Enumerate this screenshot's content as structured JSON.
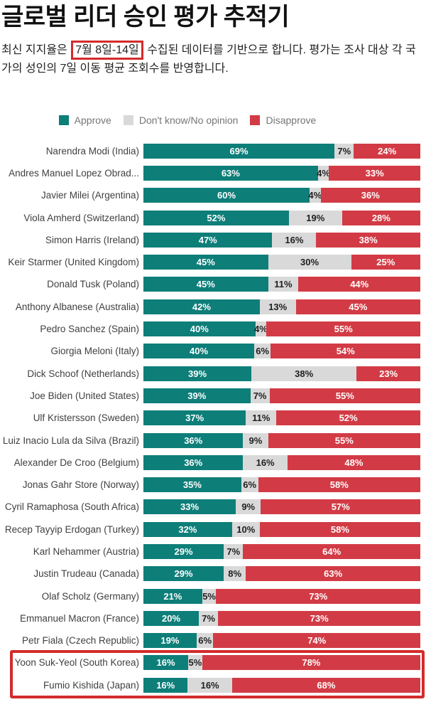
{
  "page": {
    "title": "글로벌 리더 승인 평가 추적기",
    "subtitle_part1": "최신 지지율은 ",
    "subtitle_highlight": "7월 8일-14일",
    "subtitle_part2": " 수집된 데이터를 기반으로 합니다. 평가는 조사 대상 각 국가의 성인의 7일 이동 평균 조회수를 반영합니다."
  },
  "colors": {
    "approve": "#0e7e79",
    "neutral": "#d9d9d9",
    "disapprove": "#d23b45",
    "annotation": "#d32b2b"
  },
  "legend": [
    {
      "label": "Approve",
      "color": "approve"
    },
    {
      "label": "Don't know/No opinion",
      "color": "neutral"
    },
    {
      "label": "Disapprove",
      "color": "disapprove"
    }
  ],
  "chart_data": {
    "type": "bar",
    "orientation": "horizontal",
    "stacked": true,
    "unit": "%",
    "xlim": [
      0,
      100
    ],
    "grid": false,
    "legend_position": "top-center",
    "categories": [
      "Narendra Modi (India)",
      "Andres Manuel Lopez Obrad...",
      "Javier Milei (Argentina)",
      "Viola Amherd (Switzerland)",
      "Simon Harris (Ireland)",
      "Keir Starmer (United Kingdom)",
      "Donald Tusk (Poland)",
      "Anthony Albanese (Australia)",
      "Pedro Sanchez (Spain)",
      "Giorgia Meloni (Italy)",
      "Dick Schoof (Netherlands)",
      "Joe Biden (United States)",
      "Ulf Kristersson (Sweden)",
      "Luiz Inacio Lula da Silva (Brazil)",
      "Alexander De Croo (Belgium)",
      "Jonas Gahr Store (Norway)",
      "Cyril Ramaphosa (South Africa)",
      "Recep Tayyip Erdogan (Turkey)",
      "Karl Nehammer (Austria)",
      "Justin Trudeau (Canada)",
      "Olaf Scholz (Germany)",
      "Emmanuel Macron (France)",
      "Petr Fiala (Czech Republic)",
      "Yoon Suk-Yeol (South Korea)",
      "Fumio Kishida (Japan)"
    ],
    "series": [
      {
        "name": "Approve",
        "values": [
          69,
          63,
          60,
          52,
          47,
          45,
          45,
          42,
          40,
          40,
          39,
          39,
          37,
          36,
          36,
          35,
          33,
          32,
          29,
          29,
          21,
          20,
          19,
          16,
          16
        ]
      },
      {
        "name": "Don't know/No opinion",
        "values": [
          7,
          4,
          4,
          19,
          16,
          30,
          11,
          13,
          4,
          6,
          38,
          7,
          11,
          9,
          16,
          6,
          9,
          10,
          7,
          8,
          5,
          7,
          6,
          5,
          16
        ]
      },
      {
        "name": "Disapprove",
        "values": [
          24,
          33,
          36,
          28,
          38,
          25,
          44,
          45,
          55,
          54,
          23,
          55,
          52,
          55,
          48,
          58,
          57,
          58,
          64,
          63,
          73,
          73,
          74,
          78,
          68
        ]
      }
    ],
    "highlighted_rows": [
      "Yoon Suk-Yeol (South Korea)",
      "Fumio Kishida (Japan)"
    ]
  }
}
